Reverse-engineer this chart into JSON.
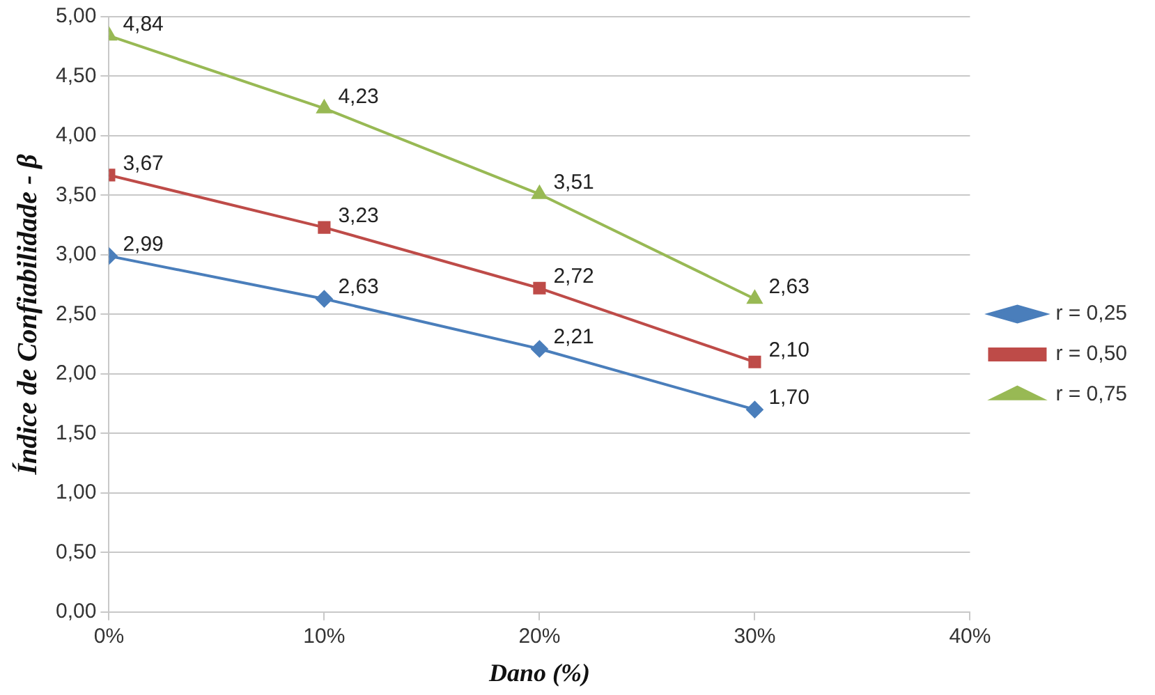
{
  "chart_data": {
    "type": "line",
    "xlabel": "Dano (%)",
    "ylabel": "Índice de Confiabilidade - β",
    "x": [
      0,
      10,
      20,
      30
    ],
    "series": [
      {
        "name": "r = 0,25",
        "color": "#4a7ebb",
        "marker": "diamond",
        "values": [
          2.99,
          2.63,
          2.21,
          1.7
        ],
        "value_labels": [
          "2,99",
          "2,63",
          "2,21",
          "1,70"
        ]
      },
      {
        "name": "r = 0,50",
        "color": "#be4b48",
        "marker": "square",
        "values": [
          3.67,
          3.23,
          2.72,
          2.1
        ],
        "value_labels": [
          "3,67",
          "3,23",
          "2,72",
          "2,10"
        ]
      },
      {
        "name": "r = 0,75",
        "color": "#98b954",
        "marker": "triangle",
        "values": [
          4.84,
          4.23,
          3.51,
          2.63
        ],
        "value_labels": [
          "4,84",
          "4,23",
          "3,51",
          "2,63"
        ]
      }
    ],
    "xlim": [
      0,
      40
    ],
    "xticks": [
      {
        "value": 0,
        "label": "0%"
      },
      {
        "value": 10,
        "label": "10%"
      },
      {
        "value": 20,
        "label": "20%"
      },
      {
        "value": 30,
        "label": "30%"
      },
      {
        "value": 40,
        "label": "40%"
      }
    ],
    "ylim": [
      0,
      5
    ],
    "yticks": [
      {
        "value": 0,
        "label": "0,00"
      },
      {
        "value": 0.5,
        "label": "0,50"
      },
      {
        "value": 1,
        "label": "1,00"
      },
      {
        "value": 1.5,
        "label": "1,50"
      },
      {
        "value": 2,
        "label": "2,00"
      },
      {
        "value": 2.5,
        "label": "2,50"
      },
      {
        "value": 3,
        "label": "3,00"
      },
      {
        "value": 3.5,
        "label": "3,50"
      },
      {
        "value": 4,
        "label": "4,00"
      },
      {
        "value": 4.5,
        "label": "4,50"
      },
      {
        "value": 5,
        "label": "5,00"
      }
    ],
    "grid": "y",
    "legend": "right",
    "line_style": "solid"
  }
}
